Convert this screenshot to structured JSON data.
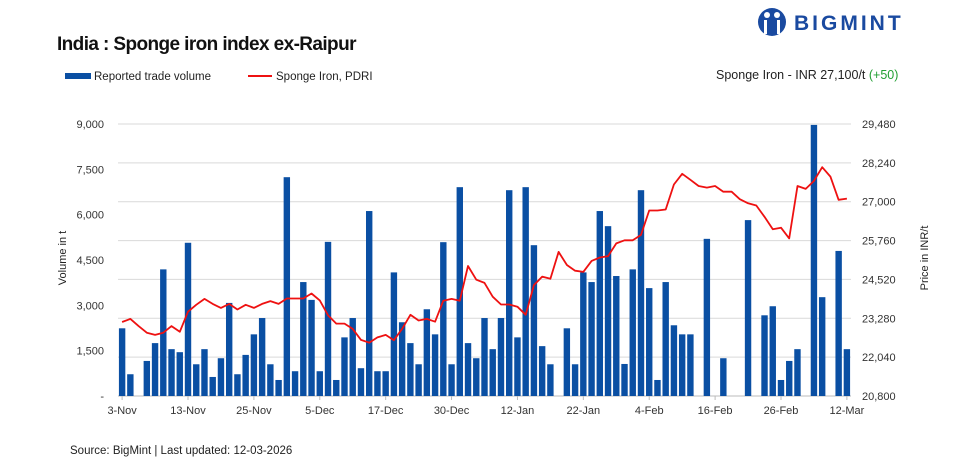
{
  "logo": {
    "text": "BIGMINT",
    "color": "#1a4aa0"
  },
  "header": {
    "title": "India : Sponge iron index ex-Raipur",
    "price_label": "Sponge Iron - INR 27,100/t ",
    "price_change": "(+50)",
    "price_change_color": "#22a033"
  },
  "footer": {
    "source": "Source: BigMint | Last updated: 12-03-2026"
  },
  "chart_data": {
    "type": "bar+line",
    "title": "India : Sponge iron index ex-Raipur",
    "legend_position": "top-left",
    "grid": true,
    "x_tick_labels": [
      "3-Nov",
      "13-Nov",
      "25-Nov",
      "5-Dec",
      "17-Dec",
      "30-Dec",
      "12-Jan",
      "22-Jan",
      "4-Feb",
      "16-Feb",
      "26-Feb",
      "12-Mar"
    ],
    "left_axis": {
      "label": "Volume in t",
      "range": [
        0,
        9000
      ],
      "ticks": [
        "-",
        "1,500",
        "3,000",
        "4,500",
        "6,000",
        "7,500",
        "9,000"
      ]
    },
    "right_axis": {
      "label": "Price in INR/t",
      "range": [
        20800,
        29480
      ],
      "ticks": [
        "20,800",
        "22,040",
        "23,280",
        "24,520",
        "25,760",
        "27,000",
        "28,240",
        "29,480"
      ]
    },
    "series": [
      {
        "name": "Reported trade volume",
        "type": "bar",
        "axis": "left",
        "color": "#0a4fa3",
        "values": [
          2240,
          720,
          0,
          1160,
          1750,
          4190,
          1550,
          1450,
          5070,
          1050,
          1550,
          630,
          1250,
          3080,
          720,
          1360,
          2040,
          2580,
          1050,
          530,
          7240,
          820,
          3770,
          3180,
          820,
          5100,
          530,
          1940,
          2580,
          920,
          6120,
          820,
          820,
          4090,
          2440,
          1750,
          1050,
          2870,
          2040,
          5090,
          1050,
          6910,
          1750,
          1250,
          2580,
          1550,
          2580,
          6810,
          1940,
          6910,
          4990,
          1650,
          1050,
          0,
          2240,
          1050,
          4090,
          3770,
          6120,
          5620,
          3970,
          1060,
          4190,
          6810,
          3570,
          530,
          3770,
          2340,
          2040,
          2040,
          0,
          5200,
          0,
          1250,
          0,
          0,
          5820,
          0,
          2670,
          2970,
          530,
          1160,
          1550,
          0,
          8970,
          3270,
          0,
          4800,
          1550
        ]
      },
      {
        "name": "Sponge Iron, PDRI",
        "type": "line",
        "axis": "right",
        "color": "#ee1111",
        "values": [
          23160,
          23260,
          23030,
          22820,
          22750,
          22820,
          23030,
          22850,
          23490,
          23710,
          23900,
          23740,
          23610,
          23740,
          23560,
          23710,
          23610,
          23740,
          23830,
          23740,
          23910,
          23910,
          23910,
          24070,
          23850,
          23380,
          23110,
          23110,
          22940,
          22590,
          22500,
          22670,
          22750,
          22580,
          22940,
          23390,
          23210,
          23260,
          23170,
          23840,
          23900,
          23840,
          24950,
          24510,
          24410,
          23970,
          23720,
          23720,
          23650,
          23390,
          24340,
          24610,
          24540,
          25400,
          24980,
          24800,
          24760,
          25110,
          25220,
          25260,
          25670,
          25770,
          25770,
          25940,
          26720,
          26720,
          26750,
          27550,
          27890,
          27700,
          27500,
          27450,
          27500,
          27320,
          27320,
          27080,
          26950,
          26880,
          26520,
          26120,
          26170,
          25830,
          27500,
          27410,
          27660,
          28100,
          27800,
          27060,
          27100
        ]
      }
    ]
  }
}
